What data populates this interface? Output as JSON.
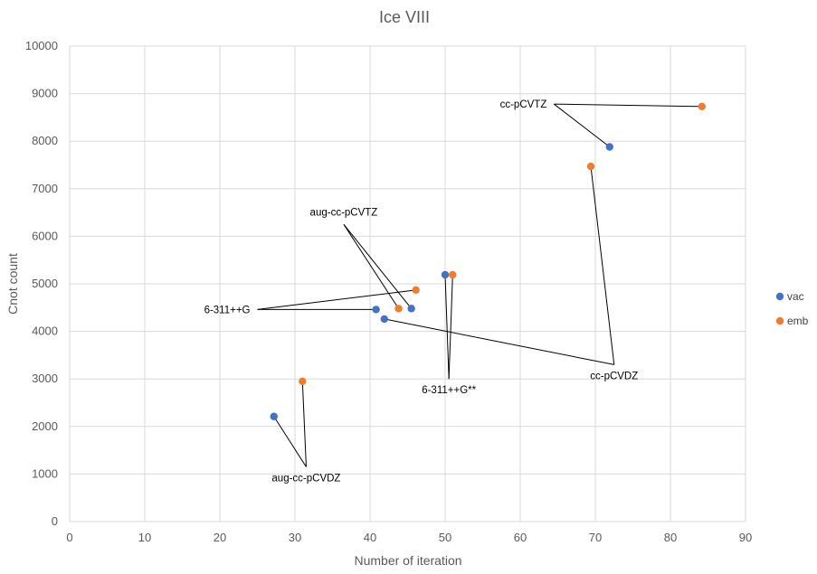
{
  "chart_data": {
    "type": "scatter",
    "title": "Ice VIII",
    "xlabel": "Number of iteration",
    "ylabel": "Cnot count",
    "xlim": [
      0,
      90
    ],
    "ylim": [
      0,
      10000
    ],
    "xticks": [
      0,
      10,
      20,
      30,
      40,
      50,
      60,
      70,
      80,
      90
    ],
    "yticks": [
      0,
      1000,
      2000,
      3000,
      4000,
      5000,
      6000,
      7000,
      8000,
      9000,
      10000
    ],
    "grid": true,
    "legend_position": "right",
    "series": [
      {
        "name": "vac",
        "color": "#4472C4",
        "points": [
          {
            "x": 27.2,
            "y": 2210
          },
          {
            "x": 40.8,
            "y": 4460
          },
          {
            "x": 41.9,
            "y": 4260
          },
          {
            "x": 45.5,
            "y": 4480
          },
          {
            "x": 50.0,
            "y": 5190
          },
          {
            "x": 71.9,
            "y": 7880
          }
        ]
      },
      {
        "name": "emb",
        "color": "#ED7D31",
        "points": [
          {
            "x": 31.0,
            "y": 2950
          },
          {
            "x": 43.8,
            "y": 4480
          },
          {
            "x": 46.1,
            "y": 4870
          },
          {
            "x": 51.0,
            "y": 5190
          },
          {
            "x": 69.4,
            "y": 7470
          },
          {
            "x": 84.2,
            "y": 8730
          }
        ]
      }
    ],
    "annotations": [
      {
        "text": "cc-pCVTZ",
        "at": {
          "x": 64.5,
          "y": 8780
        },
        "anchor": "end",
        "lines": [
          {
            "x": 71.9,
            "y": 7880
          },
          {
            "x": 84.2,
            "y": 8730
          }
        ]
      },
      {
        "text": "aug-cc-pCVTZ",
        "at": {
          "x": 36.5,
          "y": 6250
        },
        "anchor": "middle",
        "lines": [
          {
            "x": 43.8,
            "y": 4480
          },
          {
            "x": 45.5,
            "y": 4480
          }
        ]
      },
      {
        "text": "6-311++G",
        "at": {
          "x": 25.0,
          "y": 4460
        },
        "anchor": "end",
        "lines": [
          {
            "x": 40.8,
            "y": 4460
          },
          {
            "x": 46.1,
            "y": 4870
          }
        ]
      },
      {
        "text": "cc-pCVDZ",
        "at": {
          "x": 72.5,
          "y": 3300
        },
        "anchor": "middle",
        "lines": [
          {
            "x": 69.4,
            "y": 7470
          },
          {
            "x": 41.9,
            "y": 4260
          }
        ]
      },
      {
        "text": "6-311++G**",
        "at": {
          "x": 50.5,
          "y": 3000
        },
        "anchor": "middle",
        "lines": [
          {
            "x": 50.0,
            "y": 5190
          },
          {
            "x": 51.0,
            "y": 5190
          }
        ]
      },
      {
        "text": "aug-cc-pCVDZ",
        "at": {
          "x": 31.5,
          "y": 1150
        },
        "anchor": "middle",
        "lines": [
          {
            "x": 27.2,
            "y": 2210
          },
          {
            "x": 31.0,
            "y": 2950
          }
        ]
      }
    ]
  }
}
